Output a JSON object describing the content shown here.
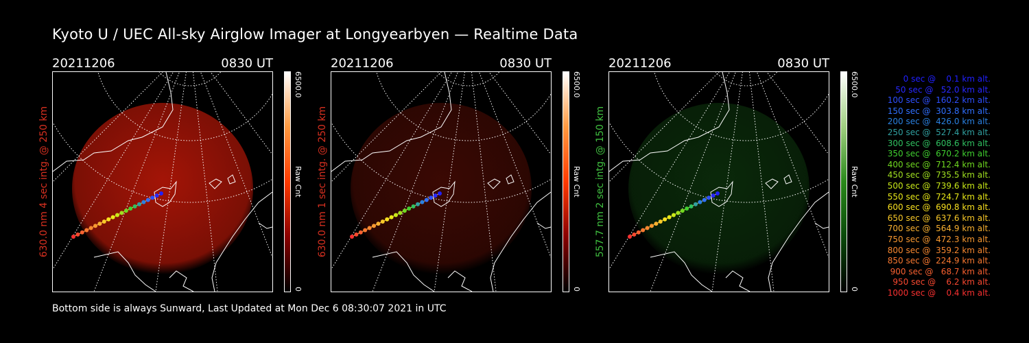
{
  "title": "Kyoto U / UEC All-sky Airglow Imager at Longyearbyen — Realtime Data",
  "footer": "Bottom side is always Sunward, Last Updated at Mon Dec  6 08:30:07 2021 in UTC",
  "panels": [
    {
      "date": "20211206",
      "time": "0830 UT",
      "side_label": "630.0 nm 4 sec intg. @ 250 km",
      "label_color": "#d83020",
      "colorbar_max": "6500.0",
      "colorbar_min": "0",
      "colorbar_unit": "Raw Cnt",
      "glow_color": "#c01808",
      "glow_intensity": 0.85,
      "colorbar_colors": [
        "#000000",
        "#8a0000",
        "#ff3a00",
        "#ff9a40",
        "#ffffff"
      ]
    },
    {
      "date": "20211206",
      "time": "0830 UT",
      "side_label": "630.0 nm 1 sec intg. @ 250 km",
      "label_color": "#d83020",
      "colorbar_max": "6500.0",
      "colorbar_min": "0",
      "colorbar_unit": "Raw Cnt",
      "glow_color": "#6a1006",
      "glow_intensity": 0.55,
      "colorbar_colors": [
        "#000000",
        "#8a0000",
        "#ff3a00",
        "#ff9a40",
        "#ffffff"
      ]
    },
    {
      "date": "20211206",
      "time": "0830 UT",
      "side_label": "557.7 nm 2 sec intg. @ 150 km",
      "label_color": "#40c040",
      "colorbar_max": "6500.0",
      "colorbar_min": "0",
      "colorbar_unit": "Raw Cnt",
      "glow_color": "#0e3a0e",
      "glow_intensity": 0.7,
      "colorbar_colors": [
        "#000000",
        "#0a4a0a",
        "#2a8a1a",
        "#a0d080",
        "#ffffff"
      ]
    }
  ],
  "trajectory_legend": [
    {
      "text": "   0 sec @    0.1 km alt.",
      "color": "#2020ff"
    },
    {
      "text": "  50 sec @   52.0 km alt.",
      "color": "#2828ff"
    },
    {
      "text": " 100 sec @  160.2 km alt.",
      "color": "#2e50ff"
    },
    {
      "text": " 150 sec @  303.8 km alt.",
      "color": "#3070ff"
    },
    {
      "text": " 200 sec @  426.0 km alt.",
      "color": "#2a80e0"
    },
    {
      "text": " 250 sec @  527.4 km alt.",
      "color": "#30a0a0"
    },
    {
      "text": " 300 sec @  608.6 km alt.",
      "color": "#30c060"
    },
    {
      "text": " 350 sec @  670.2 km alt.",
      "color": "#40d030"
    },
    {
      "text": " 400 sec @  712.4 km alt.",
      "color": "#70d820"
    },
    {
      "text": " 450 sec @  735.5 km alt.",
      "color": "#a0e020"
    },
    {
      "text": " 500 sec @  739.6 km alt.",
      "color": "#c8e818"
    },
    {
      "text": " 550 sec @  724.7 km alt.",
      "color": "#e8e818"
    },
    {
      "text": " 600 sec @  690.8 km alt.",
      "color": "#f8e020"
    },
    {
      "text": " 650 sec @  637.6 km alt.",
      "color": "#f8c828"
    },
    {
      "text": " 700 sec @  564.9 km alt.",
      "color": "#f8b030"
    },
    {
      "text": " 750 sec @  472.3 km alt.",
      "color": "#f89830"
    },
    {
      "text": " 800 sec @  359.2 km alt.",
      "color": "#f88830"
    },
    {
      "text": " 850 sec @  224.9 km alt.",
      "color": "#f87830"
    },
    {
      "text": " 900 sec @   68.7 km alt.",
      "color": "#f86030"
    },
    {
      "text": " 950 sec @    6.2 km alt.",
      "color": "#f84830"
    },
    {
      "text": "1000 sec @    0.4 km alt.",
      "color": "#f83030"
    }
  ]
}
